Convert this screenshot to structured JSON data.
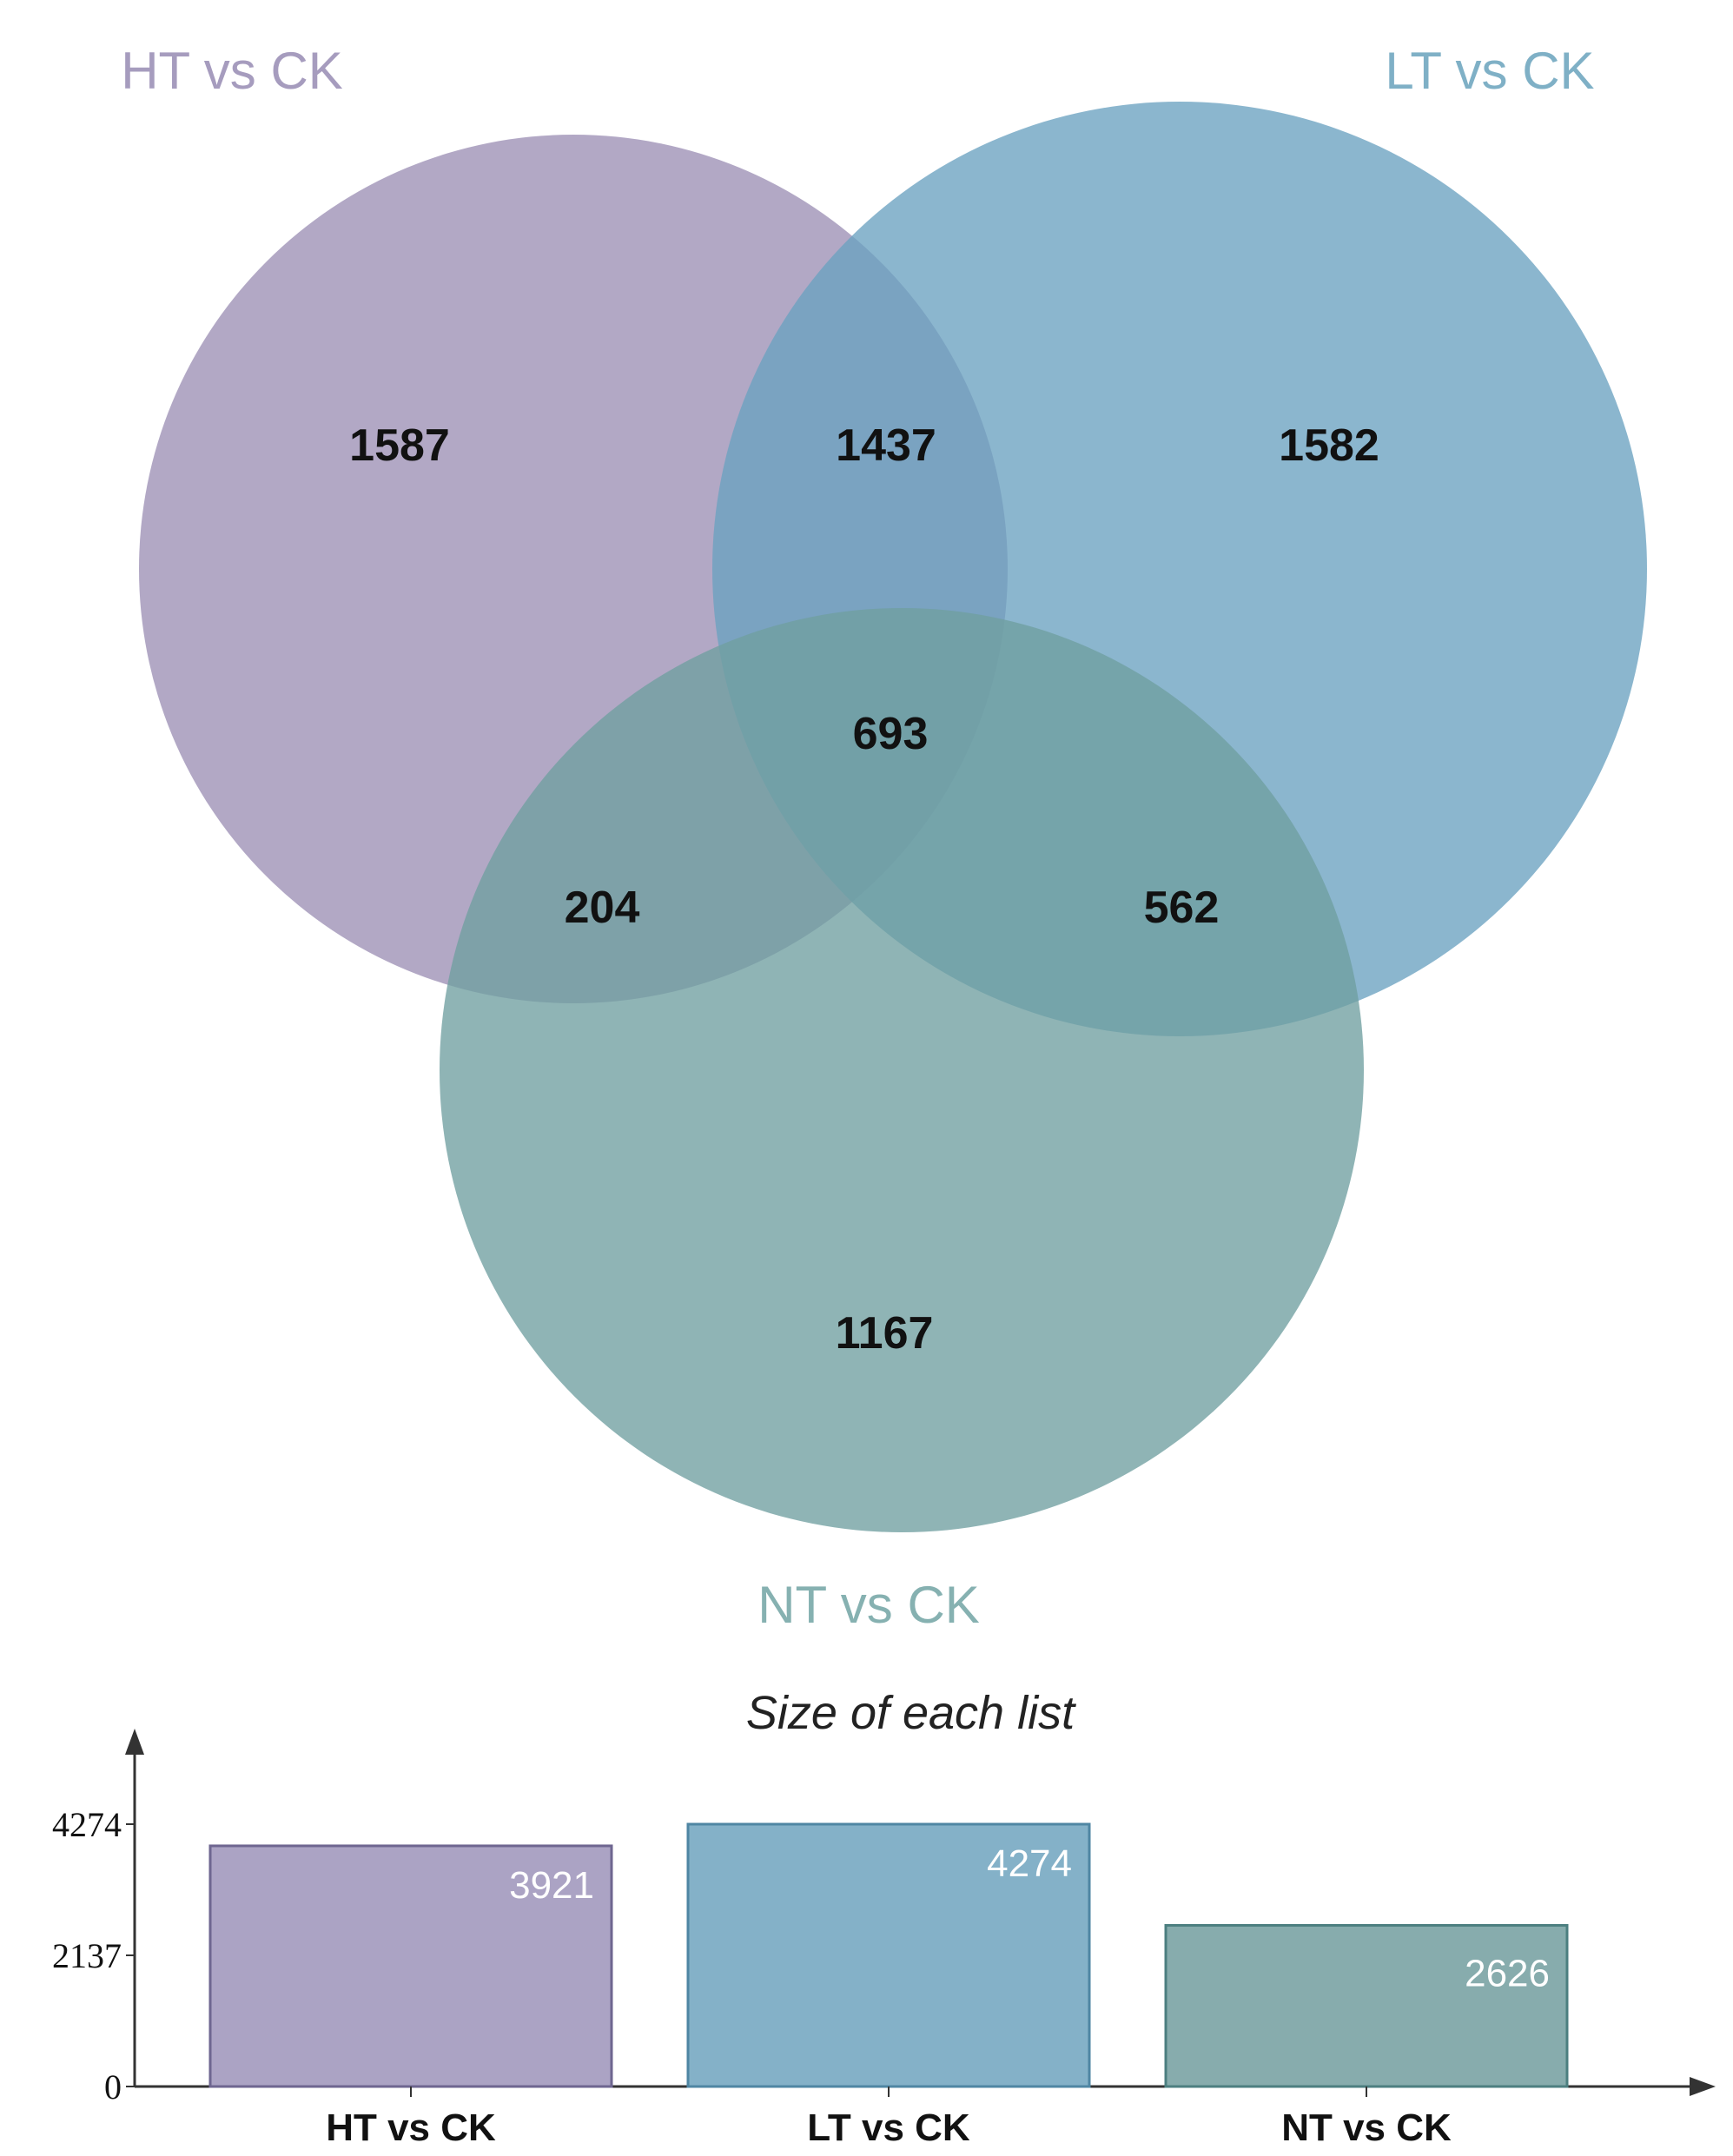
{
  "chart_data": [
    {
      "type": "venn",
      "sets": [
        {
          "name": "HT vs CK",
          "color": "#9c8fb5"
        },
        {
          "name": "LT vs CK",
          "color": "#6aa1c0"
        },
        {
          "name": "NT vs CK",
          "color": "#6f9fa0"
        }
      ],
      "regions": [
        {
          "sets": [
            "HT vs CK"
          ],
          "value": 1587
        },
        {
          "sets": [
            "HT vs CK",
            "LT vs CK"
          ],
          "value": 1437
        },
        {
          "sets": [
            "LT vs CK"
          ],
          "value": 1582
        },
        {
          "sets": [
            "HT vs CK",
            "LT vs CK",
            "NT vs CK"
          ],
          "value": 693
        },
        {
          "sets": [
            "HT vs CK",
            "NT vs CK"
          ],
          "value": 204
        },
        {
          "sets": [
            "LT vs CK",
            "NT vs CK"
          ],
          "value": 562
        },
        {
          "sets": [
            "NT vs CK"
          ],
          "value": 1167
        }
      ]
    },
    {
      "type": "bar",
      "title": "Size of each list",
      "categories": [
        "HT vs CK",
        "LT vs CK",
        "NT vs CK"
      ],
      "values": [
        3921,
        4274,
        2626
      ],
      "colors": [
        "#ab a3c4",
        "#84b1c8",
        "#87acad"
      ],
      "yticks": [
        "0",
        "2137",
        "4274"
      ],
      "ylim": [
        0,
        4274
      ],
      "xlabel": "",
      "ylabel": ""
    }
  ]
}
